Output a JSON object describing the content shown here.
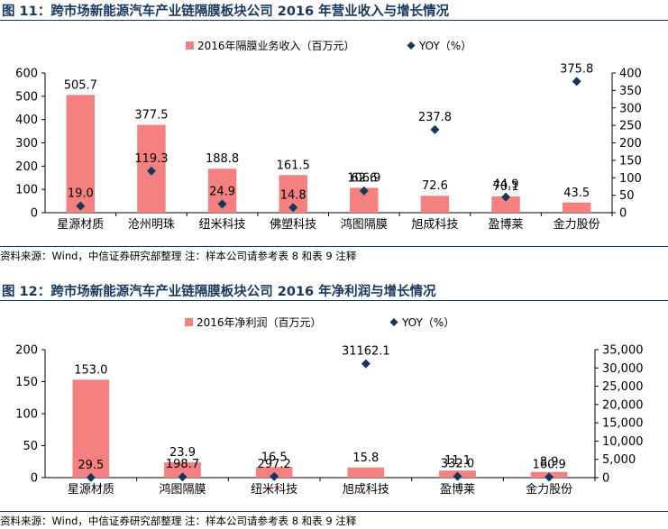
{
  "chart_data": [
    {
      "type": "bar",
      "title": "图 11：跨市场新能源汽车产业链隔膜板块公司 2016 年营业收入与增长情况",
      "categories": [
        "星源材质",
        "沧州明珠",
        "纽米科技",
        "佛塑科技",
        "鸿图隔膜",
        "旭成科技",
        "盈博莱",
        "金力股份"
      ],
      "series": [
        {
          "name": "2016年隔膜业务收入（百万元）",
          "kind": "bar",
          "axis": "left",
          "values": [
            505.7,
            377.5,
            188.8,
            161.5,
            106.9,
            72.6,
            70.1,
            43.5
          ]
        },
        {
          "name": "YOY（%）",
          "kind": "scatter",
          "axis": "right",
          "values": [
            19.0,
            119.3,
            24.9,
            14.8,
            62.6,
            237.8,
            44.9,
            375.8
          ]
        }
      ],
      "bar_labels": [
        "505.7",
        "377.5",
        "188.8",
        "161.5",
        "106.9",
        "72.6",
        "70.1",
        "43.5"
      ],
      "yoy_labels": [
        "19.0",
        "119.3",
        "24.9",
        "14.8",
        "62.6",
        "237.8",
        "44.9",
        "375.8"
      ],
      "ylim": [
        0,
        600
      ],
      "y2lim": [
        0,
        400
      ],
      "yticks": [
        "0",
        "100",
        "200",
        "300",
        "400",
        "500",
        "600"
      ],
      "y2ticks": [
        "0",
        "50",
        "100",
        "150",
        "200",
        "250",
        "300",
        "350",
        "400"
      ],
      "legend_position": "top",
      "grid": false,
      "source": "资料来源：Wind，中信证券研究部整理   注：样本公司请参考表 8 和表 9 注释"
    },
    {
      "type": "bar",
      "title": "图 12：跨市场新能源汽车产业链隔膜板块公司 2016 年净利润与增长情况",
      "categories": [
        "星源材质",
        "鸿图隔膜",
        "纽米科技",
        "旭成科技",
        "盈博莱",
        "金力股份"
      ],
      "series": [
        {
          "name": "2016年净利润（百万元）",
          "kind": "bar",
          "axis": "left",
          "values": [
            153.0,
            23.9,
            16.5,
            15.8,
            11.1,
            8.9
          ]
        },
        {
          "name": "YOY（%）",
          "kind": "scatter",
          "axis": "right",
          "values": [
            29.5,
            198.7,
            297.2,
            31162.1,
            332.0,
            160.9
          ]
        }
      ],
      "bar_labels": [
        "153.0",
        "23.9",
        "16.5",
        "15.8",
        "11.1",
        "8.9"
      ],
      "yoy_labels": [
        "29.5",
        "198.7",
        "297.2",
        "31162.1",
        "332.0",
        "160.9"
      ],
      "ylim": [
        0,
        200
      ],
      "y2lim": [
        0,
        35000
      ],
      "yticks": [
        "0",
        "50",
        "100",
        "150",
        "200"
      ],
      "y2ticks": [
        "0",
        "5,000",
        "10,000",
        "15,000",
        "20,000",
        "25,000",
        "30,000",
        "35,000"
      ],
      "legend_position": "top",
      "grid": false,
      "source": "资料来源：Wind，中信证券研究部整理   注：样本公司请参考表 8 和表 9 注释"
    }
  ],
  "colors": {
    "bar": "#f4807f",
    "marker": "#16365c",
    "title": "#17375e"
  }
}
